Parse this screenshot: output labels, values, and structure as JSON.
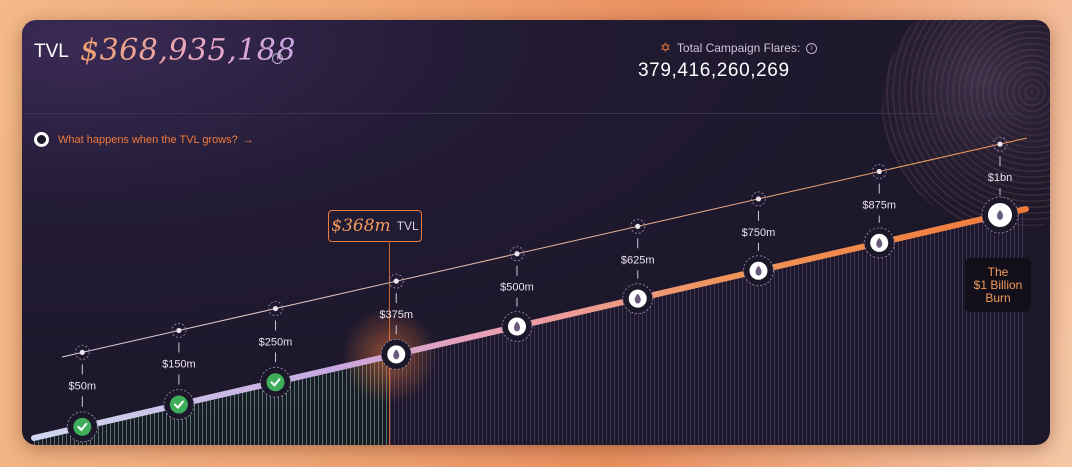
{
  "header": {
    "tvl_label": "TVL",
    "tvl_value": "$368,935,188",
    "flares_label": "Total Campaign Flares:",
    "flares_value": "379,416,260,269"
  },
  "info_link": {
    "text": "What happens when the TVL grows?",
    "arrow": "→"
  },
  "current_marker": {
    "value": "$368m",
    "label": "TVL",
    "tvl_millions": 368
  },
  "burn": {
    "lines": [
      "The",
      "$1 Billion",
      "Burn"
    ]
  },
  "milestones": [
    {
      "label": "$50m",
      "tvl_millions": 50,
      "status": "completed"
    },
    {
      "label": "$150m",
      "tvl_millions": 150,
      "status": "completed"
    },
    {
      "label": "$250m",
      "tvl_millions": 250,
      "status": "completed"
    },
    {
      "label": "$375m",
      "tvl_millions": 375,
      "status": "upcoming"
    },
    {
      "label": "$500m",
      "tvl_millions": 500,
      "status": "upcoming"
    },
    {
      "label": "$625m",
      "tvl_millions": 625,
      "status": "upcoming"
    },
    {
      "label": "$750m",
      "tvl_millions": 750,
      "status": "upcoming"
    },
    {
      "label": "$875m",
      "tvl_millions": 875,
      "status": "upcoming"
    },
    {
      "label": "$1bn",
      "tvl_millions": 1000,
      "status": "upcoming"
    }
  ],
  "icons": {
    "info": "info-icon",
    "flare": "star-icon",
    "completed": "check-icon",
    "upcoming": "flame-icon",
    "link_arrow": "arrow-right-icon"
  },
  "colors": {
    "accent": "#f07a3a",
    "completed": "#3fae5a",
    "background": "#1c1729"
  }
}
